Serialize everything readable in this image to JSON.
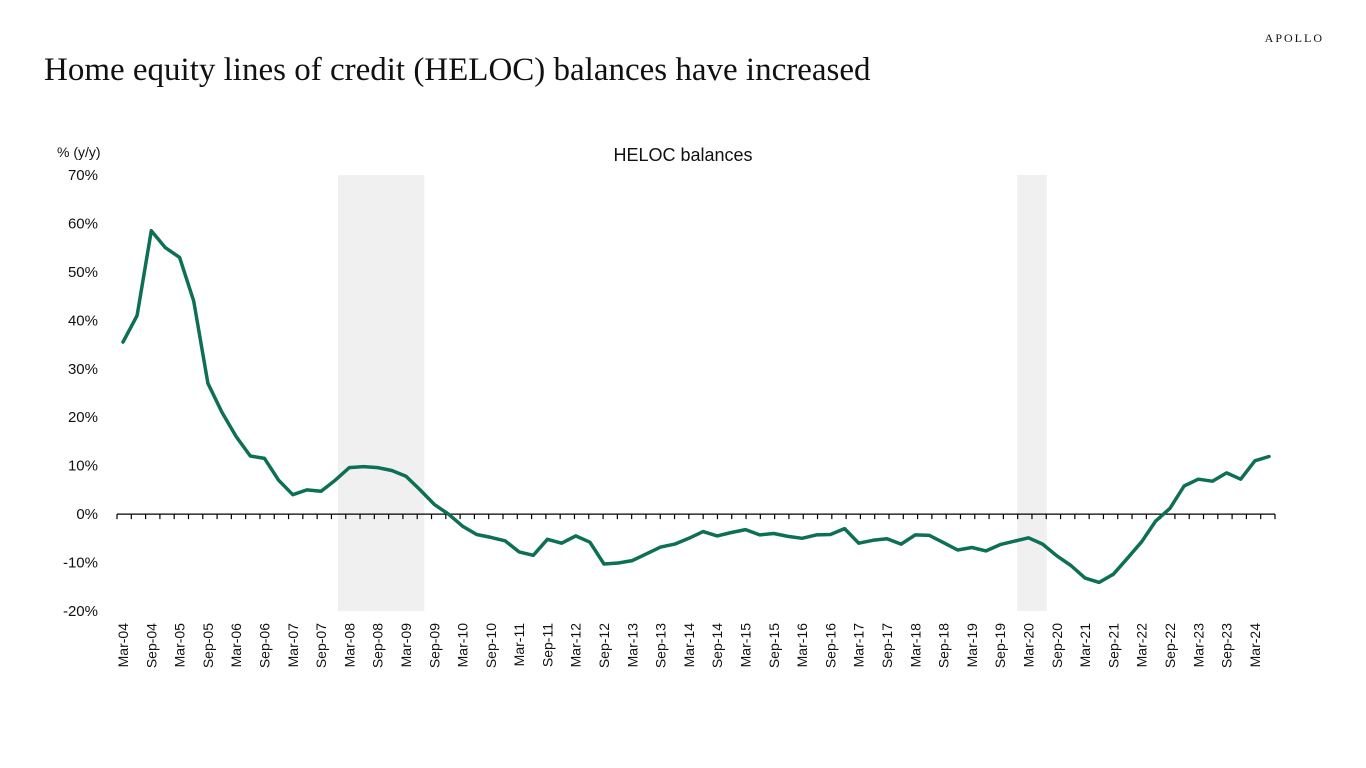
{
  "brand": "APOLLO",
  "headline": "Home equity lines of credit (HELOC) balances have increased",
  "chart_data": {
    "type": "line",
    "title": "HELOC balances",
    "ylabel": "% (y/y)",
    "xlabel": "",
    "ylim": [
      -20,
      70
    ],
    "y_ticks": [
      70,
      60,
      50,
      40,
      30,
      20,
      10,
      0,
      -10,
      -20
    ],
    "y_tick_labels": [
      "70%",
      "60%",
      "50%",
      "40%",
      "30%",
      "20%",
      "10%",
      "0%",
      "-10%",
      "-20%"
    ],
    "x_tick_labels": [
      "Mar-04",
      "Sep-04",
      "Mar-05",
      "Sep-05",
      "Mar-06",
      "Sep-06",
      "Mar-07",
      "Sep-07",
      "Mar-08",
      "Sep-08",
      "Mar-09",
      "Sep-09",
      "Mar-10",
      "Sep-10",
      "Mar-11",
      "Sep-11",
      "Mar-12",
      "Sep-12",
      "Mar-13",
      "Sep-13",
      "Mar-14",
      "Sep-14",
      "Mar-15",
      "Sep-15",
      "Mar-16",
      "Sep-16",
      "Mar-17",
      "Sep-17",
      "Mar-18",
      "Sep-18",
      "Mar-19",
      "Sep-19",
      "Mar-20",
      "Sep-20",
      "Mar-21",
      "Sep-21",
      "Mar-22",
      "Sep-22",
      "Mar-23",
      "Sep-23",
      "Mar-24"
    ],
    "recessions": [
      {
        "start": "Dec-07",
        "end": "Jun-09"
      },
      {
        "start": "Dec-19",
        "end": "Jun-20"
      }
    ],
    "grid": false,
    "colors": {
      "line": "#0d7055",
      "recession": "#f0f0f0",
      "axis": "#000000"
    },
    "series": [
      {
        "x": [
          "Mar-04",
          "Jun-04",
          "Sep-04",
          "Dec-04",
          "Mar-05",
          "Jun-05",
          "Sep-05",
          "Dec-05",
          "Mar-06",
          "Jun-06",
          "Sep-06",
          "Dec-06",
          "Mar-07",
          "Jun-07",
          "Sep-07",
          "Dec-07",
          "Mar-08",
          "Jun-08",
          "Sep-08",
          "Dec-08",
          "Mar-09",
          "Jun-09",
          "Sep-09",
          "Dec-09",
          "Mar-10",
          "Jun-10",
          "Sep-10",
          "Dec-10",
          "Mar-11",
          "Jun-11",
          "Sep-11",
          "Dec-11",
          "Mar-12",
          "Jun-12",
          "Sep-12",
          "Dec-12",
          "Mar-13",
          "Jun-13",
          "Sep-13",
          "Dec-13",
          "Mar-14",
          "Jun-14",
          "Sep-14",
          "Dec-14",
          "Mar-15",
          "Jun-15",
          "Sep-15",
          "Dec-15",
          "Mar-16",
          "Jun-16",
          "Sep-16",
          "Dec-16",
          "Mar-17",
          "Jun-17",
          "Sep-17",
          "Dec-17",
          "Mar-18",
          "Jun-18",
          "Sep-18",
          "Dec-18",
          "Mar-19",
          "Jun-19",
          "Sep-19",
          "Dec-19",
          "Mar-20",
          "Jun-20",
          "Sep-20",
          "Dec-20",
          "Mar-21",
          "Jun-21",
          "Sep-21",
          "Dec-21",
          "Mar-22",
          "Jun-22",
          "Sep-22",
          "Dec-22",
          "Mar-23",
          "Jun-23",
          "Sep-23",
          "Dec-23",
          "Mar-24",
          "Jun-24"
        ],
        "values": [
          35.5,
          41.0,
          58.5,
          55.0,
          53.0,
          44.0,
          27.0,
          21.0,
          16.0,
          12.0,
          11.5,
          7.0,
          4.0,
          5.0,
          4.7,
          7.0,
          9.6,
          9.8,
          9.6,
          9.0,
          7.8,
          5.0,
          2.0,
          0.0,
          -2.5,
          -4.2,
          -4.8,
          -5.5,
          -7.8,
          -8.5,
          -5.2,
          -6.0,
          -4.5,
          -5.8,
          -10.3,
          -10.1,
          -9.6,
          -8.2,
          -6.8,
          -6.2,
          -5.0,
          -3.6,
          -4.5,
          -3.8,
          -3.2,
          -4.3,
          -4.0,
          -4.6,
          -5.0,
          -4.3,
          -4.2,
          -3.0,
          -6.0,
          -5.4,
          -5.1,
          -6.2,
          -4.3,
          -4.4,
          -5.9,
          -7.4,
          -6.9,
          -7.6,
          -6.3,
          -5.6,
          -4.9,
          -6.2,
          -8.6,
          -10.6,
          -13.2,
          -14.1,
          -12.4,
          -9.1,
          -5.7,
          -1.4,
          1.2,
          5.8,
          7.2,
          6.8,
          8.5,
          7.2,
          11.0,
          11.9
        ]
      }
    ]
  }
}
